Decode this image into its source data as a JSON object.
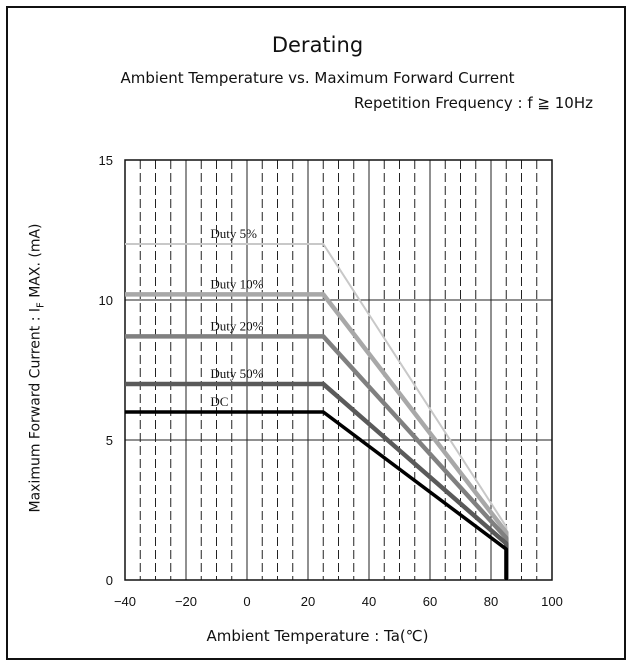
{
  "title": "Derating",
  "subtitle": "Ambient Temperature vs. Maximum Forward Current",
  "condition": "Repetition Frequency : f ≧ 10Hz",
  "chart_data": {
    "type": "line",
    "title": "Derating",
    "xlabel": "Ambient Temperature : Ta(℃)",
    "ylabel_pre": "Maximum Forward Current : I",
    "ylabel_sub": "F",
    "ylabel_post": " MAX. (mA)",
    "xlim": [
      -40,
      100
    ],
    "ylim": [
      0,
      15
    ],
    "xticks": [
      "-40",
      "-20",
      "0",
      "20",
      "40",
      "60",
      "80",
      "100"
    ],
    "yticks": [
      "0",
      "5",
      "10",
      "15"
    ],
    "grid": true,
    "series": [
      {
        "name": "Duty 5%",
        "color": "#c8c8c8",
        "points": [
          [
            -40,
            12.0
          ],
          [
            25,
            12.0
          ],
          [
            85,
            1.9
          ],
          [
            85,
            0
          ]
        ]
      },
      {
        "name": "Duty 10%",
        "color": "#a8a8a8",
        "points": [
          [
            -40,
            10.2
          ],
          [
            25,
            10.2
          ],
          [
            85,
            1.7
          ],
          [
            85,
            0
          ]
        ]
      },
      {
        "name": "Duty 20%",
        "color": "#808080",
        "points": [
          [
            -40,
            8.7
          ],
          [
            25,
            8.7
          ],
          [
            85,
            1.5
          ],
          [
            85,
            0
          ]
        ]
      },
      {
        "name": "Duty 50%",
        "color": "#5a5a5a",
        "points": [
          [
            -40,
            7.0
          ],
          [
            25,
            7.0
          ],
          [
            85,
            1.3
          ],
          [
            85,
            0
          ]
        ]
      },
      {
        "name": "DC",
        "color": "#000000",
        "points": [
          [
            -40,
            6.0
          ],
          [
            25,
            6.0
          ],
          [
            85,
            1.1
          ],
          [
            85,
            0
          ]
        ]
      }
    ]
  }
}
